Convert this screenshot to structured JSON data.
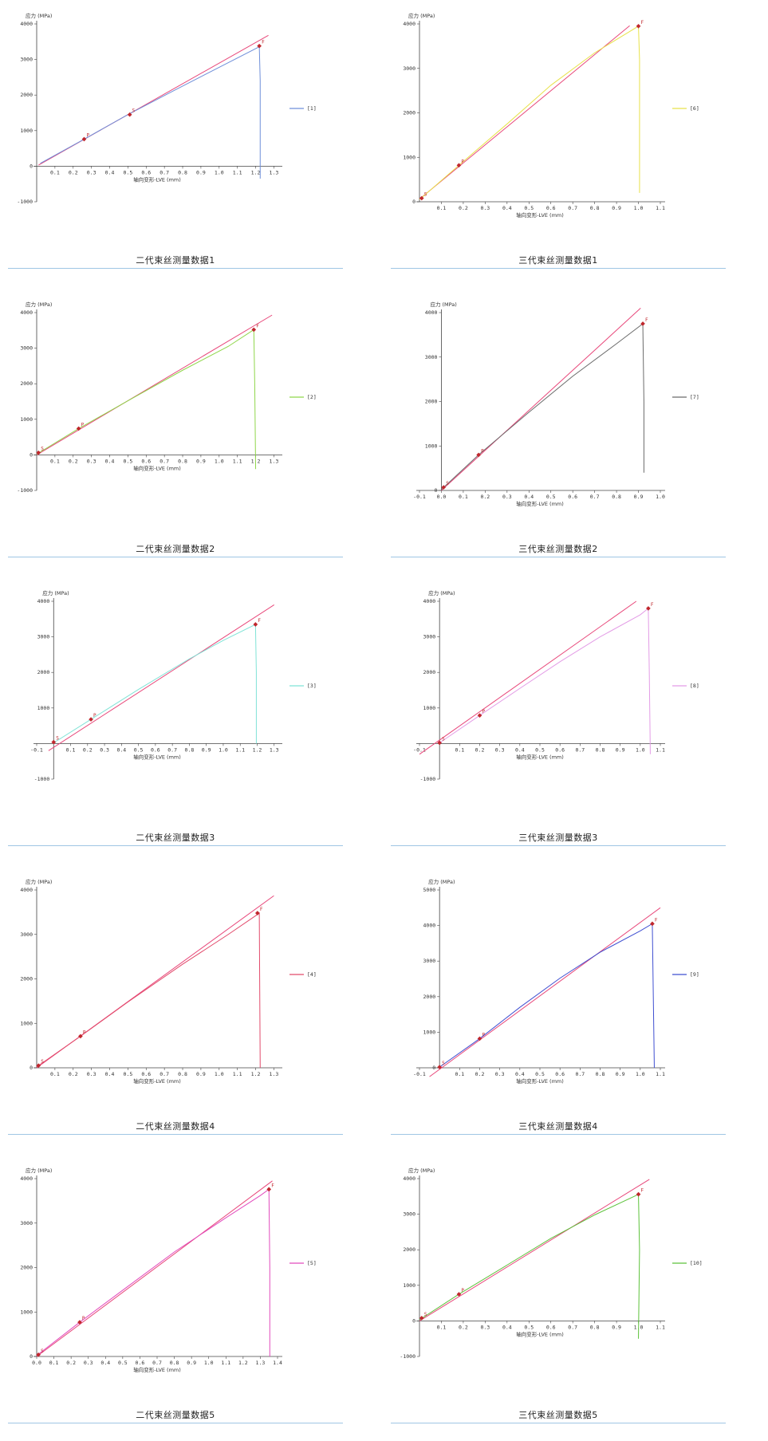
{
  "colors": {
    "fit_line": "#e8477a",
    "marker": "#c0272d",
    "divider": "#9fc6e4",
    "axis": "#444444"
  },
  "chart_data": [
    {
      "type": "line",
      "caption": "二代束丝测量数据1",
      "ylabel": "应力 (MPa)",
      "xlabel": "轴向变形-LVE (mm)",
      "xlim": [
        0.0,
        1.32
      ],
      "ylim": [
        -1000,
        4000
      ],
      "xticks": [
        "0.1",
        "0.2",
        "0.3",
        "0.4",
        "0.5",
        "0.6",
        "0.7",
        "0.8",
        "0.9",
        "1.0",
        "1.1",
        "1.2",
        "1.3"
      ],
      "yticks": [
        "-1000",
        "0",
        "1000",
        "2000",
        "3000",
        "4000"
      ],
      "series": [
        {
          "name": "[1]",
          "color": "#6f8fd9",
          "x": [
            0.02,
            0.26,
            0.5,
            0.75,
            1.0,
            1.21,
            1.22,
            1.225,
            1.225
          ],
          "y": [
            80,
            760,
            1450,
            2120,
            2780,
            3330,
            3380,
            2400,
            -350
          ]
        }
      ],
      "fit": {
        "x": [
          0.01,
          1.27
        ],
        "y": [
          30,
          3680
        ]
      },
      "markers": [
        {
          "x": 0.26,
          "y": 760,
          "label": "P"
        },
        {
          "x": 0.51,
          "y": 1450,
          "label": "S"
        },
        {
          "x": 1.22,
          "y": 3380,
          "label": "F"
        }
      ]
    },
    {
      "type": "line",
      "caption": "三代束丝测量数据1",
      "ylabel": "应力 (MPa)",
      "xlabel": "轴向变形-LVE (mm)",
      "xlim": [
        0.0,
        1.1
      ],
      "ylim": [
        0,
        4000
      ],
      "xticks": [
        "0.1",
        "0.2",
        "0.3",
        "0.4",
        "0.5",
        "0.6",
        "0.7",
        "0.8",
        "0.9",
        "1.0",
        "1.1"
      ],
      "yticks": [
        "0",
        "1000",
        "2000",
        "3000",
        "4000"
      ],
      "series": [
        {
          "name": "[6]",
          "color": "#e8e24a",
          "x": [
            0.0,
            0.18,
            0.4,
            0.6,
            0.8,
            0.95,
            1.0,
            1.005,
            1.005
          ],
          "y": [
            50,
            820,
            1750,
            2620,
            3350,
            3800,
            3950,
            3200,
            200
          ]
        }
      ],
      "fit": {
        "x": [
          0.0,
          0.96
        ],
        "y": [
          60,
          3960
        ]
      },
      "markers": [
        {
          "x": 0.01,
          "y": 80,
          "label": "S"
        },
        {
          "x": 0.18,
          "y": 820,
          "label": "P"
        },
        {
          "x": 1.0,
          "y": 3950,
          "label": "F"
        }
      ]
    },
    {
      "type": "line",
      "caption": "二代束丝测量数据2",
      "ylabel": "应力 (MPa)",
      "xlabel": "轴向变形-LVE (mm)",
      "xlim": [
        0.0,
        1.32
      ],
      "ylim": [
        -1000,
        4000
      ],
      "xticks": [
        "0.1",
        "0.2",
        "0.3",
        "0.4",
        "0.5",
        "0.6",
        "0.7",
        "0.8",
        "0.9",
        "1.0",
        "1.1",
        "1.2",
        "1.3"
      ],
      "yticks": [
        "-1000",
        "0",
        "1000",
        "2000",
        "3000",
        "4000"
      ],
      "series": [
        {
          "name": "[2]",
          "color": "#8fd64a",
          "x": [
            0.0,
            0.23,
            0.5,
            0.8,
            1.05,
            1.19,
            1.195,
            1.2
          ],
          "y": [
            20,
            740,
            1520,
            2380,
            3050,
            3520,
            2000,
            -400
          ]
        }
      ],
      "fit": {
        "x": [
          0.0,
          1.29
        ],
        "y": [
          0,
          3930
        ]
      },
      "markers": [
        {
          "x": 0.01,
          "y": 60,
          "label": "S"
        },
        {
          "x": 0.23,
          "y": 740,
          "label": "P"
        },
        {
          "x": 1.19,
          "y": 3520,
          "label": "F"
        }
      ]
    },
    {
      "type": "line",
      "caption": "三代束丝测量数据2",
      "ylabel": "应力 (MPa)",
      "xlabel": "轴向变形-LVE (mm)",
      "xlim": [
        -0.1,
        1.0
      ],
      "ylim": [
        0,
        4000
      ],
      "xticks": [
        "-0.1",
        "0.0",
        "0.1",
        "0.2",
        "0.3",
        "0.4",
        "0.5",
        "0.6",
        "0.7",
        "0.8",
        "0.9",
        "1.0"
      ],
      "yticks": [
        "0",
        "1000",
        "2000",
        "3000",
        "4000"
      ],
      "series": [
        {
          "name": "[7]",
          "color": "#6b6b6b",
          "x": [
            0.0,
            0.17,
            0.4,
            0.6,
            0.8,
            0.92,
            0.925,
            0.925
          ],
          "y": [
            20,
            800,
            1760,
            2570,
            3300,
            3750,
            2000,
            400
          ]
        }
      ],
      "fit": {
        "x": [
          0.0,
          0.91
        ],
        "y": [
          0,
          4100
        ]
      },
      "markers": [
        {
          "x": 0.01,
          "y": 70,
          "label": "S"
        },
        {
          "x": 0.17,
          "y": 800,
          "label": "P"
        },
        {
          "x": 0.92,
          "y": 3750,
          "label": "F"
        }
      ]
    },
    {
      "type": "line",
      "caption": "二代束丝测量数据3",
      "ylabel": "应力 (MPa)",
      "xlabel": "轴向变形-LVE (mm)",
      "xlim": [
        -0.1,
        1.32
      ],
      "ylim": [
        -1000,
        4000
      ],
      "xticks": [
        "-0.1",
        "0.1",
        "0.2",
        "0.3",
        "0.4",
        "0.5",
        "0.6",
        "0.7",
        "0.8",
        "0.9",
        "1.0",
        "1.1",
        "1.2",
        "1.3"
      ],
      "yticks": [
        "-1000",
        "1000",
        "2000",
        "3000",
        "4000"
      ],
      "series": [
        {
          "name": "[3]",
          "color": "#7fe3d6",
          "x": [
            0.0,
            0.22,
            0.5,
            0.8,
            1.0,
            1.19,
            1.195,
            1.195
          ],
          "y": [
            20,
            680,
            1520,
            2380,
            2900,
            3350,
            2000,
            0
          ]
        }
      ],
      "fit": {
        "x": [
          -0.03,
          1.3
        ],
        "y": [
          -200,
          3900
        ]
      },
      "markers": [
        {
          "x": 0.0,
          "y": 40,
          "label": "S"
        },
        {
          "x": 0.22,
          "y": 680,
          "label": "P"
        },
        {
          "x": 1.19,
          "y": 3350,
          "label": "F"
        }
      ]
    },
    {
      "type": "line",
      "caption": "三代束丝测量数据3",
      "ylabel": "应力 (MPa)",
      "xlabel": "轴向变形-LVE (mm)",
      "xlim": [
        -0.1,
        1.1
      ],
      "ylim": [
        -1000,
        4000
      ],
      "xticks": [
        "-0.1",
        "0.1",
        "0.2",
        "0.3",
        "0.4",
        "0.5",
        "0.6",
        "0.7",
        "0.8",
        "0.9",
        "1.0",
        "1.1"
      ],
      "yticks": [
        "-1000",
        "1000",
        "2000",
        "3000",
        "4000"
      ],
      "series": [
        {
          "name": "[8]",
          "color": "#e39ce6",
          "x": [
            0.0,
            0.2,
            0.4,
            0.6,
            0.8,
            1.0,
            1.04,
            1.045,
            1.05
          ],
          "y": [
            20,
            790,
            1550,
            2300,
            3000,
            3620,
            3800,
            2000,
            -300
          ]
        }
      ],
      "fit": {
        "x": [
          -0.1,
          0.98
        ],
        "y": [
          -300,
          4000
        ]
      },
      "markers": [
        {
          "x": 0.0,
          "y": 20,
          "label": "S"
        },
        {
          "x": 0.2,
          "y": 790,
          "label": "P"
        },
        {
          "x": 1.04,
          "y": 3800,
          "label": "F"
        }
      ]
    },
    {
      "type": "line",
      "caption": "二代束丝测量数据4",
      "ylabel": "应力 (MPa)",
      "xlabel": "轴向变形-LVE (mm)",
      "xlim": [
        0.0,
        1.32
      ],
      "ylim": [
        0,
        4000
      ],
      "xticks": [
        "0.1",
        "0.2",
        "0.3",
        "0.4",
        "0.5",
        "0.6",
        "0.7",
        "0.8",
        "0.9",
        "1.0",
        "1.1",
        "1.2",
        "1.3"
      ],
      "yticks": [
        "0",
        "1000",
        "2000",
        "3000",
        "4000"
      ],
      "series": [
        {
          "name": "[4]",
          "color": "#e24a6b",
          "x": [
            0.0,
            0.24,
            0.5,
            0.8,
            1.05,
            1.2,
            1.22,
            1.225
          ],
          "y": [
            20,
            710,
            1480,
            2330,
            3000,
            3420,
            3480,
            0
          ]
        }
      ],
      "fit": {
        "x": [
          0.0,
          1.3
        ],
        "y": [
          0,
          3870
        ]
      },
      "markers": [
        {
          "x": 0.01,
          "y": 50,
          "label": "S"
        },
        {
          "x": 0.24,
          "y": 710,
          "label": "P"
        },
        {
          "x": 1.21,
          "y": 3480,
          "label": "F"
        }
      ]
    },
    {
      "type": "line",
      "caption": "三代束丝测量数据4",
      "ylabel": "应力 (MPa)",
      "xlabel": "轴向变形-LVE (mm)",
      "xlim": [
        -0.1,
        1.1
      ],
      "ylim": [
        0,
        5000
      ],
      "xticks": [
        "-0.1",
        "0.1",
        "0.2",
        "0.3",
        "0.4",
        "0.5",
        "0.6",
        "0.7",
        "0.8",
        "0.9",
        "1.0",
        "1.1"
      ],
      "yticks": [
        "0",
        "1000",
        "2000",
        "3000",
        "4000",
        "5000"
      ],
      "series": [
        {
          "name": "[9]",
          "color": "#3f4fd1",
          "x": [
            0.0,
            0.2,
            0.4,
            0.6,
            0.8,
            1.0,
            1.06,
            1.065,
            1.07
          ],
          "y": [
            20,
            820,
            1700,
            2520,
            3250,
            3850,
            4050,
            2000,
            0
          ]
        }
      ],
      "fit": {
        "x": [
          -0.05,
          1.1
        ],
        "y": [
          -250,
          4500
        ]
      },
      "markers": [
        {
          "x": 0.0,
          "y": 20,
          "label": "S"
        },
        {
          "x": 0.2,
          "y": 820,
          "label": "P"
        },
        {
          "x": 1.06,
          "y": 4050,
          "label": "F"
        }
      ]
    },
    {
      "type": "line",
      "caption": "二代束丝测量数据5",
      "ylabel": "应力 (MPa)",
      "xlabel": "轴向变形-LVE (mm)",
      "xlim": [
        0.0,
        1.4
      ],
      "ylim": [
        0,
        4000
      ],
      "xticks": [
        "0.0",
        "0.1",
        "0.2",
        "0.3",
        "0.4",
        "0.5",
        "0.6",
        "0.7",
        "0.8",
        "0.9",
        "1.0",
        "1.1",
        "1.2",
        "1.3",
        "1.4"
      ],
      "yticks": [
        "0",
        "1000",
        "2000",
        "3000",
        "4000"
      ],
      "series": [
        {
          "name": "[5]",
          "color": "#e24abd",
          "x": [
            0.0,
            0.25,
            0.5,
            0.8,
            1.1,
            1.3,
            1.35,
            1.355,
            1.355
          ],
          "y": [
            20,
            770,
            1490,
            2350,
            3120,
            3620,
            3760,
            2000,
            0
          ]
        }
      ],
      "fit": {
        "x": [
          0.0,
          1.37
        ],
        "y": [
          0,
          3950
        ]
      },
      "markers": [
        {
          "x": 0.01,
          "y": 40,
          "label": "S"
        },
        {
          "x": 0.25,
          "y": 770,
          "label": "P"
        },
        {
          "x": 1.35,
          "y": 3760,
          "label": "F"
        }
      ]
    },
    {
      "type": "line",
      "caption": "三代束丝测量数据5",
      "ylabel": "应力 (MPa)",
      "xlabel": "轴向变形-LVE (mm)",
      "xlim": [
        0.0,
        1.1
      ],
      "ylim": [
        -1000,
        4000
      ],
      "xticks": [
        "0.1",
        "0.2",
        "0.3",
        "0.4",
        "0.5",
        "0.6",
        "0.7",
        "0.8",
        "0.9",
        "1.0",
        "1.1"
      ],
      "yticks": [
        "-1000",
        "0",
        "1000",
        "2000",
        "3000",
        "4000"
      ],
      "series": [
        {
          "name": "[10]",
          "color": "#5cc23a",
          "x": [
            0.0,
            0.18,
            0.4,
            0.6,
            0.8,
            0.98,
            1.0,
            1.005,
            1.0
          ],
          "y": [
            30,
            750,
            1570,
            2320,
            2980,
            3500,
            3560,
            2000,
            -500
          ]
        }
      ],
      "fit": {
        "x": [
          0.0,
          1.05
        ],
        "y": [
          0,
          3980
        ]
      },
      "markers": [
        {
          "x": 0.01,
          "y": 80,
          "label": "S"
        },
        {
          "x": 0.18,
          "y": 750,
          "label": "P"
        },
        {
          "x": 1.0,
          "y": 3560,
          "label": "F"
        }
      ]
    }
  ]
}
